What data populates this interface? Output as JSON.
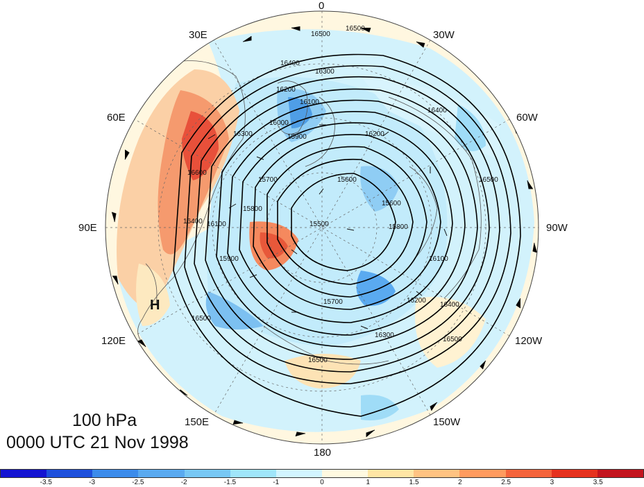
{
  "map": {
    "projection": "north polar stereographic",
    "longitude_labels": [
      "0",
      "30W",
      "60W",
      "90W",
      "120W",
      "150W",
      "180",
      "150E",
      "120E",
      "90E",
      "60E",
      "30E"
    ],
    "contour_labels": [
      "16500",
      "16500",
      "16400",
      "16300",
      "16200",
      "16100",
      "16000",
      "15900",
      "16300",
      "16200",
      "16400",
      "16500",
      "15700",
      "15600",
      "15500",
      "15600",
      "15800",
      "16100",
      "16200",
      "16300",
      "16400",
      "16500",
      "15700",
      "15800",
      "15900",
      "16100",
      "16500",
      "16500",
      "16600",
      "16400"
    ],
    "high_marker": "H",
    "colors": {
      "land_outline": "#555555",
      "contour": "#000000",
      "positive": "#e2462f",
      "negative": "#4f9ee6"
    }
  },
  "labels": {
    "level": "100 hPa",
    "time": "0000 UTC 21 Nov 1998"
  },
  "colorbar": {
    "colors": [
      "#1414d2",
      "#1e50dc",
      "#3c8ceb",
      "#5aaaf0",
      "#78c8f5",
      "#a0e6fa",
      "#d2f5ff",
      "#fffae1",
      "#ffe6a5",
      "#ffc382",
      "#ff9b5f",
      "#f5643c",
      "#e6321e",
      "#c3141e"
    ],
    "ticks": [
      "-3.5",
      "-3",
      "-2.5",
      "-2",
      "-1.5",
      "-1",
      "0",
      "1",
      "1.5",
      "2",
      "2.5",
      "3",
      "3.5"
    ]
  }
}
